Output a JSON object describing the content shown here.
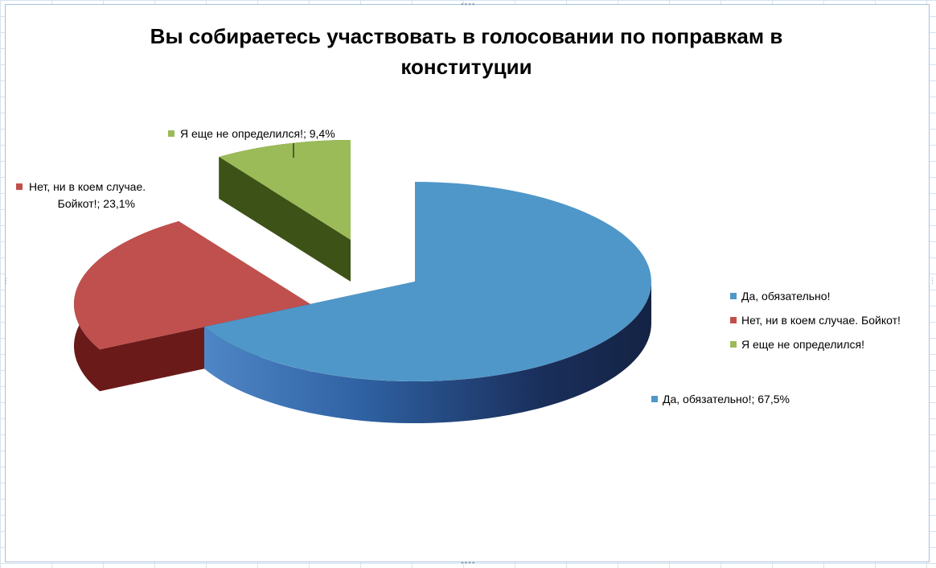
{
  "window": {
    "handles": {
      "top": "∙∙∙∙",
      "bottom": "∙∙∙∙",
      "left": "⋮",
      "right": "⋮"
    }
  },
  "chart_data": {
    "type": "pie",
    "title": "Вы собираетесь участвовать в голосовании по поправкам в конституции",
    "slices": [
      {
        "label": "Да, обязательно!",
        "value": 67.5,
        "color": "#4f97c8",
        "data_label": "Да, обязательно!; 67,5%"
      },
      {
        "label": "Нет, ни в коем случае. Бойкот!",
        "value": 23.1,
        "color": "#c0504d",
        "data_label_lines": [
          "Нет, ни в коем случае.",
          "Бойкот!; 23,1%"
        ]
      },
      {
        "label": "Я еще не определился!",
        "value": 9.4,
        "color": "#9bbb59",
        "data_label": "Я еще не определился!; 9,4%"
      }
    ],
    "legend": {
      "position": "right",
      "entries": [
        "Да, обязательно!",
        "Нет, ни в коем случае. Бойкот!",
        "Я еще не определился!"
      ]
    },
    "style": "3d-exploded-pie"
  }
}
